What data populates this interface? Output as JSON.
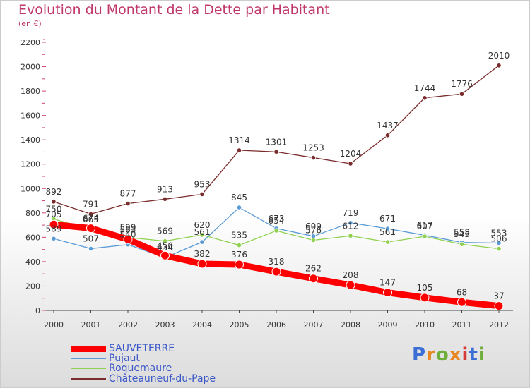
{
  "title": "Evolution du Montant de la Dette par Habitant",
  "subtitle": "(en €)",
  "logo": {
    "text": "Proxiti",
    "colors": [
      "#3b6fd6",
      "#e8861f",
      "#6fae3a",
      "#e8861f",
      "#d63b3b",
      "#3b6fd6",
      "#6fae3a"
    ]
  },
  "chart_data": {
    "type": "line",
    "title": "Evolution du Montant de la Dette par Habitant",
    "subtitle": "(en €)",
    "x": [
      "2000",
      "2001",
      "2002",
      "2003",
      "2004",
      "2005",
      "2006",
      "2007",
      "2008",
      "2009",
      "2010",
      "2011",
      "2012"
    ],
    "y_ticks": [
      "0",
      "200",
      "400",
      "600",
      "800",
      "1000",
      "1200",
      "1400",
      "1600",
      "1800",
      "2000",
      "2200"
    ],
    "ylim": [
      0,
      2200
    ],
    "grid": false,
    "legend_position": "bottom-left",
    "series": [
      {
        "name": "SAUVETERRE",
        "color": "#ff0000",
        "values": [
          705,
          674,
          583,
          450,
          382,
          376,
          318,
          262,
          208,
          147,
          105,
          68,
          37
        ],
        "labels": [
          "705",
          "674",
          "583",
          "450",
          "382",
          "376",
          "318",
          "262",
          "208",
          "147",
          "105",
          "68",
          "37"
        ]
      },
      {
        "name": "Pujaut",
        "color": "#5b9bd5",
        "values": [
          589,
          507,
          540,
          434,
          561,
          845,
          673,
          609,
          719,
          671,
          617,
          558,
          553
        ],
        "labels": [
          "589",
          "507",
          "540",
          "434",
          "561",
          "845",
          "673",
          "609",
          "719",
          "671",
          "617",
          "558",
          "553"
        ]
      },
      {
        "name": "Roquemaure",
        "color": "#8fd14f",
        "values": [
          750,
          665,
          599,
          569,
          620,
          535,
          654,
          576,
          612,
          561,
          607,
          543,
          506
        ],
        "labels": [
          "750",
          "665",
          "599",
          "569",
          "620",
          "535",
          "654",
          "576",
          "612",
          "561",
          "607",
          "543",
          "506"
        ]
      },
      {
        "name": "Châteauneuf-du-Pape",
        "color": "#7b2c2c",
        "values": [
          892,
          791,
          877,
          913,
          953,
          1314,
          1301,
          1253,
          1204,
          1437,
          1744,
          1776,
          2010
        ],
        "labels": [
          "892",
          "791",
          "877",
          "913",
          "953",
          "1314",
          "1301",
          "1253",
          "1204",
          "1437",
          "1744",
          "1776",
          "2010"
        ]
      }
    ]
  }
}
